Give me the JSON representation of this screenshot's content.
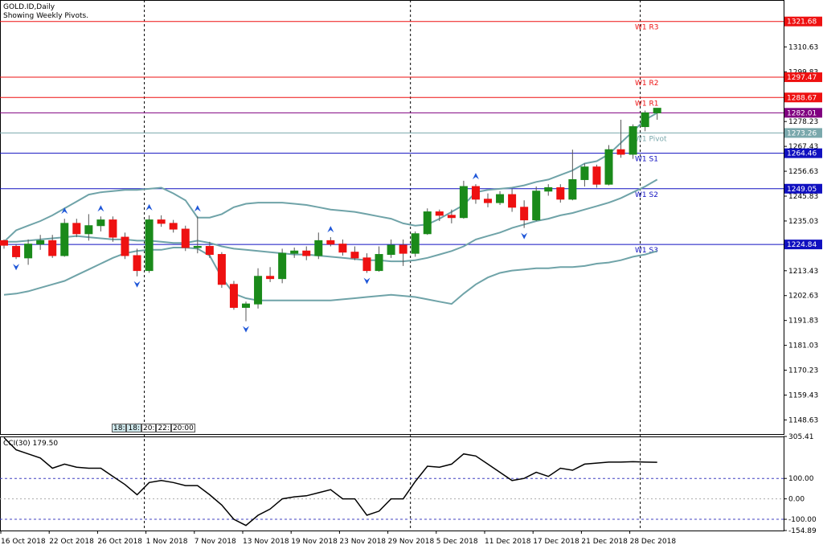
{
  "header": {
    "symbol_line": "GOLD.ID,Daily",
    "pivot_line": "Showing Weekly Pivots."
  },
  "colors": {
    "bull": "#1a8a1a",
    "bear": "#ee1111",
    "resistance": "#ee1111",
    "support": "#1010c0",
    "pivot": "#7aa8ac",
    "band": "#6fa3a8",
    "current": "#800080",
    "cci": "#000000",
    "fractal": "#1e56d8"
  },
  "time_box": [
    "18:",
    "18:",
    "20:",
    "22:",
    "20:00"
  ],
  "chart_data": {
    "type": "candlestick",
    "price_axis": {
      "range": [
        1142.5,
        1331.0
      ],
      "ticks": [
        "1310.63",
        "1299.83",
        "1289.03",
        "1278.23",
        "1267.43",
        "1256.63",
        "1245.83",
        "1235.03",
        "1224.23",
        "1213.43",
        "1202.63",
        "1191.83",
        "1181.03",
        "1170.23",
        "1159.43",
        "1148.63"
      ]
    },
    "date_labels": [
      {
        "i": 0,
        "text": "16 Oct 2018"
      },
      {
        "i": 4,
        "text": "22 Oct 2018"
      },
      {
        "i": 8,
        "text": "26 Oct 2018"
      },
      {
        "i": 12,
        "text": "1 Nov 2018"
      },
      {
        "i": 16,
        "text": "7 Nov 2018"
      },
      {
        "i": 20,
        "text": "13 Nov 2018"
      },
      {
        "i": 24,
        "text": "19 Nov 2018"
      },
      {
        "i": 28,
        "text": "23 Nov 2018"
      },
      {
        "i": 32,
        "text": "29 Nov 2018"
      },
      {
        "i": 36,
        "text": "5 Dec 2018"
      },
      {
        "i": 40,
        "text": "11 Dec 2018"
      },
      {
        "i": 44,
        "text": "17 Dec 2018"
      },
      {
        "i": 48,
        "text": "21 Dec 2018"
      },
      {
        "i": 52,
        "text": "28 Dec 2018"
      }
    ],
    "separators": [
      12,
      34,
      53
    ],
    "candles": [
      [
        1226.5,
        1227.0,
        1223.0,
        1224.5
      ],
      [
        1224.0,
        1225.0,
        1218.5,
        1219.5
      ],
      [
        1219.0,
        1227.0,
        1216.0,
        1225.0
      ],
      [
        1225.0,
        1229.0,
        1222.5,
        1226.5
      ],
      [
        1226.5,
        1229.0,
        1219.0,
        1220.0
      ],
      [
        1220.0,
        1236.0,
        1219.5,
        1234.0
      ],
      [
        1234.0,
        1236.0,
        1228.0,
        1229.5
      ],
      [
        1229.5,
        1238.0,
        1226.5,
        1233.0
      ],
      [
        1233.0,
        1237.0,
        1230.5,
        1235.5
      ],
      [
        1235.5,
        1237.0,
        1226.0,
        1228.0
      ],
      [
        1228.0,
        1230.0,
        1218.5,
        1220.0
      ],
      [
        1220.0,
        1223.0,
        1211.0,
        1213.5
      ],
      [
        1213.5,
        1237.5,
        1212.5,
        1235.5
      ],
      [
        1235.5,
        1237.5,
        1232.5,
        1234.0
      ],
      [
        1234.0,
        1235.5,
        1230.0,
        1231.5
      ],
      [
        1231.5,
        1233.0,
        1222.0,
        1223.5
      ],
      [
        1223.5,
        1237.0,
        1221.0,
        1224.0
      ],
      [
        1224.0,
        1226.0,
        1219.0,
        1220.5
      ],
      [
        1220.5,
        1221.5,
        1206.0,
        1207.5
      ],
      [
        1207.5,
        1209.0,
        1196.5,
        1197.5
      ],
      [
        1197.5,
        1200.0,
        1191.5,
        1199.0
      ],
      [
        1199.0,
        1214.5,
        1197.0,
        1211.0
      ],
      [
        1211.0,
        1215.0,
        1208.5,
        1210.0
      ],
      [
        1210.0,
        1223.0,
        1208.0,
        1221.0
      ],
      [
        1221.0,
        1223.5,
        1219.0,
        1222.0
      ],
      [
        1222.0,
        1224.0,
        1218.0,
        1220.0
      ],
      [
        1220.0,
        1230.0,
        1218.5,
        1226.5
      ],
      [
        1226.5,
        1228.0,
        1224.0,
        1225.0
      ],
      [
        1225.0,
        1227.0,
        1220.0,
        1221.5
      ],
      [
        1221.5,
        1224.0,
        1218.0,
        1219.0
      ],
      [
        1219.0,
        1221.0,
        1212.5,
        1213.5
      ],
      [
        1213.5,
        1224.0,
        1213.0,
        1220.5
      ],
      [
        1220.5,
        1227.0,
        1219.0,
        1224.5
      ],
      [
        1224.5,
        1227.0,
        1215.5,
        1221.0
      ],
      [
        1221.0,
        1230.5,
        1219.5,
        1229.5
      ],
      [
        1229.5,
        1240.5,
        1229.0,
        1239.0
      ],
      [
        1239.0,
        1240.0,
        1235.0,
        1237.5
      ],
      [
        1237.5,
        1240.0,
        1234.0,
        1236.5
      ],
      [
        1236.5,
        1252.5,
        1236.0,
        1250.0
      ],
      [
        1250.0,
        1251.0,
        1242.5,
        1244.5
      ],
      [
        1244.5,
        1247.0,
        1241.0,
        1243.0
      ],
      [
        1243.0,
        1248.0,
        1242.0,
        1246.5
      ],
      [
        1246.5,
        1249.0,
        1239.0,
        1241.0
      ],
      [
        1241.0,
        1244.0,
        1232.0,
        1235.5
      ],
      [
        1235.5,
        1250.0,
        1235.0,
        1248.0
      ],
      [
        1248.0,
        1251.0,
        1246.0,
        1249.5
      ],
      [
        1249.5,
        1251.0,
        1243.0,
        1244.5
      ],
      [
        1244.5,
        1266.0,
        1244.0,
        1253.0
      ],
      [
        1253.0,
        1260.0,
        1250.0,
        1258.5
      ],
      [
        1258.5,
        1259.5,
        1249.5,
        1251.0
      ],
      [
        1251.0,
        1268.0,
        1250.5,
        1266.0
      ],
      [
        1266.0,
        1279.0,
        1262.5,
        1264.0
      ],
      [
        1264.0,
        1277.0,
        1262.0,
        1276.0
      ],
      [
        1276.0,
        1283.0,
        1274.0,
        1282.0
      ],
      [
        1282.0,
        1284.0,
        1279.0,
        1284.0
      ]
    ],
    "bollinger": {
      "upper": [
        1226.0,
        1231.0,
        1233.0,
        1235.0,
        1237.5,
        1240.5,
        1243.5,
        1246.5,
        1247.5,
        1248.0,
        1248.5,
        1248.5,
        1249.0,
        1249.5,
        1247.0,
        1244.0,
        1236.5,
        1236.5,
        1238.0,
        1241.0,
        1242.5,
        1243.0,
        1243.0,
        1243.0,
        1242.5,
        1242.0,
        1241.0,
        1240.0,
        1239.5,
        1239.0,
        1238.0,
        1237.0,
        1236.0,
        1234.0,
        1233.0,
        1233.5,
        1236.0,
        1239.0,
        1242.0,
        1247.5,
        1248.5,
        1249.0,
        1249.5,
        1250.5,
        1252.0,
        1253.0,
        1255.0,
        1257.0,
        1260.0,
        1261.0,
        1264.0,
        1269.0,
        1274.0,
        1279.0,
        1282.0
      ],
      "middle": [
        1226.0,
        1226.0,
        1226.5,
        1227.0,
        1227.5,
        1228.0,
        1228.5,
        1228.0,
        1227.5,
        1227.0,
        1227.0,
        1226.5,
        1226.5,
        1226.0,
        1225.5,
        1225.5,
        1226.5,
        1225.5,
        1224.0,
        1223.0,
        1222.5,
        1222.0,
        1221.5,
        1221.0,
        1220.5,
        1220.5,
        1220.0,
        1219.5,
        1219.0,
        1218.5,
        1218.0,
        1218.0,
        1217.5,
        1217.5,
        1218.0,
        1219.0,
        1220.5,
        1222.0,
        1224.0,
        1227.0,
        1228.5,
        1230.0,
        1232.0,
        1233.5,
        1235.0,
        1236.0,
        1237.5,
        1238.5,
        1240.0,
        1241.5,
        1243.0,
        1245.0,
        1247.5,
        1250.0,
        1253.0
      ],
      "lower": [
        1203.0,
        1203.5,
        1204.5,
        1206.0,
        1207.5,
        1209.0,
        1211.5,
        1214.0,
        1216.5,
        1219.0,
        1221.0,
        1222.0,
        1222.5,
        1222.5,
        1223.5,
        1223.5,
        1223.0,
        1220.0,
        1210.5,
        1203.5,
        1201.5,
        1200.5,
        1200.5,
        1200.5,
        1200.5,
        1200.5,
        1200.5,
        1200.5,
        1201.0,
        1201.5,
        1202.0,
        1202.5,
        1203.0,
        1202.5,
        1202.0,
        1201.0,
        1200.0,
        1199.0,
        1203.5,
        1207.5,
        1210.5,
        1212.5,
        1213.5,
        1214.0,
        1214.5,
        1214.5,
        1215.0,
        1215.0,
        1215.5,
        1216.5,
        1217.0,
        1218.0,
        1219.5,
        1220.5,
        1222.0
      ]
    },
    "fractals_up": [
      5,
      8,
      12,
      16,
      27,
      39
    ],
    "fractals_down": [
      1,
      11,
      20,
      30,
      43
    ],
    "pivots": [
      {
        "name": "W1 R3",
        "value": 1321.68,
        "tag": "1321.68",
        "kind": "resistance"
      },
      {
        "name": "W1 R2",
        "value": 1297.47,
        "tag": "1297.47",
        "kind": "resistance"
      },
      {
        "name": "W1 R1",
        "value": 1288.67,
        "tag": "1288.67",
        "kind": "resistance"
      },
      {
        "name": "",
        "value": 1282.01,
        "tag": "1282.01",
        "kind": "current"
      },
      {
        "name": "W1 Pivot",
        "value": 1273.26,
        "tag": "1273.26",
        "kind": "pivot"
      },
      {
        "name": "W1 S1",
        "value": 1264.46,
        "tag": "1264.46",
        "kind": "support"
      },
      {
        "name": "W1 S2",
        "value": 1249.05,
        "tag": "1249.05",
        "kind": "support"
      },
      {
        "name": "W1 S3",
        "value": 1224.84,
        "tag": "1224.84",
        "kind": "support"
      }
    ],
    "cci": {
      "label": "CCI(30) 179.50",
      "range": [
        -154.89,
        305.41
      ],
      "ticks": [
        {
          "value": 305.41,
          "text": "305.41"
        },
        {
          "value": 100.0,
          "text": "100.00"
        },
        {
          "value": 0.0,
          "text": "0.00"
        },
        {
          "value": -100.0,
          "text": "-100.00"
        },
        {
          "value": -154.89,
          "text": "-154.89"
        }
      ],
      "levels": [
        100,
        -100
      ],
      "values": [
        300,
        240,
        220,
        200,
        150,
        170,
        155,
        150,
        150,
        110,
        70,
        20,
        80,
        90,
        80,
        65,
        65,
        20,
        -30,
        -100,
        -130,
        -80,
        -50,
        0,
        10,
        15,
        30,
        45,
        0,
        0,
        -80,
        -60,
        0,
        0,
        85,
        160,
        155,
        170,
        220,
        210,
        170,
        130,
        90,
        100,
        130,
        110,
        150,
        140,
        170,
        175,
        180,
        180,
        182,
        180,
        179
      ]
    }
  }
}
